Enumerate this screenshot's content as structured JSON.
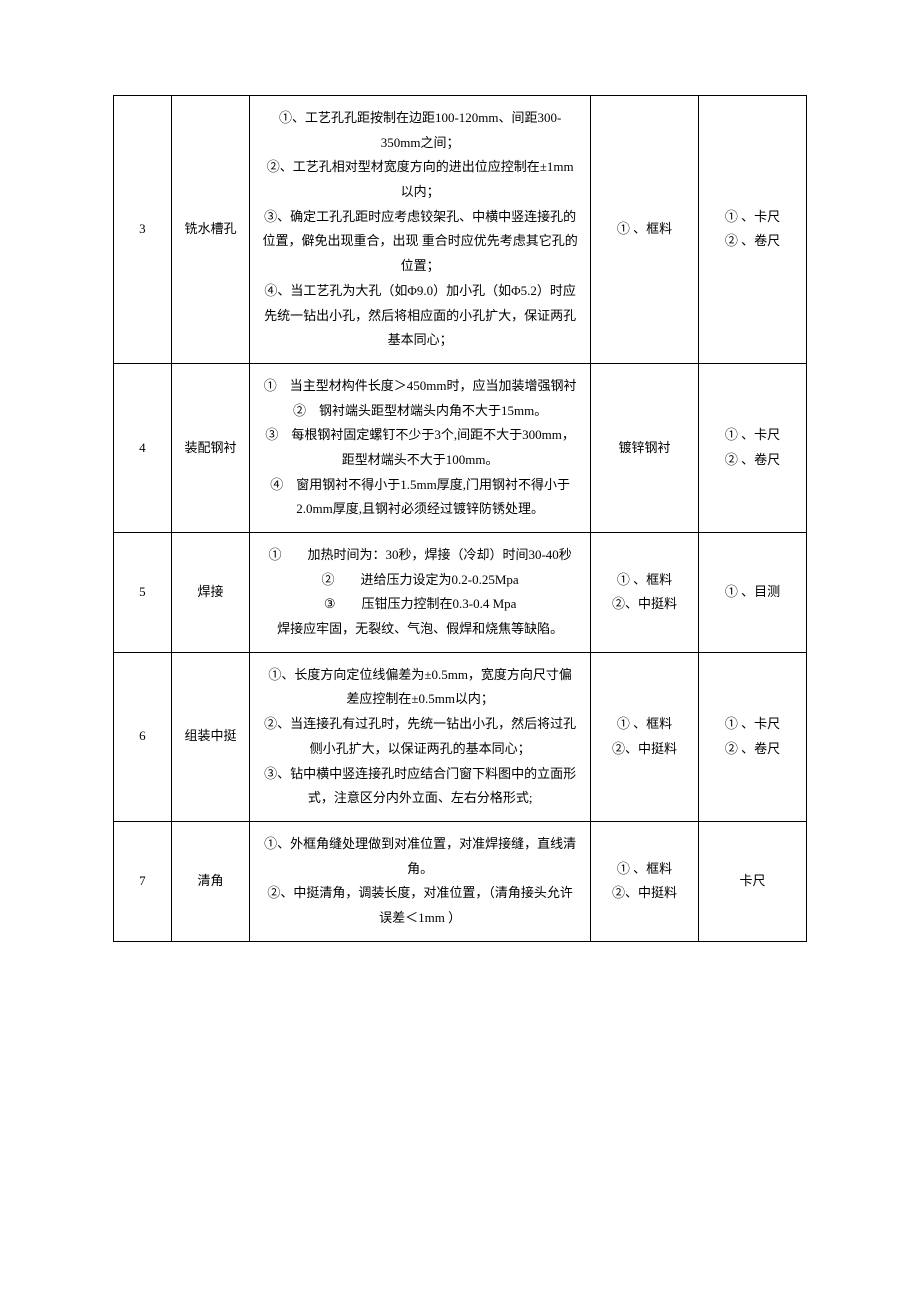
{
  "table": {
    "columns": {
      "num_width": 42,
      "name_width": 62,
      "desc_width": 300,
      "obj_width": 90,
      "tool_width": 90
    },
    "font_size": 13,
    "line_height": 1.9,
    "border_color": "#000000",
    "text_color": "#000000",
    "background_color": "#ffffff",
    "rows": [
      {
        "num": "3",
        "name": "铣水槽孔",
        "desc": "①、工艺孔孔距按制在边距100-120mm、间距300-350mm之间；\n②、工艺孔相对型材宽度方向的进出位应控制在±1mm以内；\n③、确定工孔孔距时应考虑铰架孔、中横中竖连接孔的位置，僻免出现重合，出现 重合时应优先考虑其它孔的位置；\n④、当工艺孔为大孔（如Φ9.0）加小孔（如Φ5.2）时应先统一钻出小孔，然后将相应面的小孔扩大，保证两孔基本同心；",
        "obj": "① 、框料",
        "tool": "① 、卡尺\n② 、卷尺"
      },
      {
        "num": "4",
        "name": "装配钢衬",
        "desc": "①　当主型材构件长度＞450mm时，应当加装增强钢衬\n②　钢衬端头距型材端头内角不大于15mm。\n③　每根钢衬固定螺钉不少于3个,间距不大于300mm，距型材端头不大于100mm。\n④　窗用钢衬不得小于1.5mm厚度,门用钢衬不得小于2.0mm厚度,且钢衬必须经过镀锌防锈处理。",
        "obj": "镀锌钢衬",
        "tool": "① 、卡尺\n② 、卷尺"
      },
      {
        "num": "5",
        "name": "焊接",
        "desc": "①　　加热时间为：30秒，焊接（冷却）时间30-40秒\n②　　进给压力设定为0.2-0.25Mpa\n③　　压钳压力控制在0.3-0.4 Mpa\n焊接应牢固，无裂纹、气泡、假焊和烧焦等缺陷。",
        "obj": "① 、框料\n②、中挺料",
        "tool": "① 、目测"
      },
      {
        "num": "6",
        "name": "组装中挺",
        "desc": "①、长度方向定位线偏差为±0.5mm，宽度方向尺寸偏差应控制在±0.5mm以内；\n②、当连接孔有过孔时，先统一钻出小孔，然后将过孔侧小孔扩大，以保证两孔的基本同心；\n③、钻中横中竖连接孔时应结合门窗下料图中的立面形式，注意区分内外立面、左右分格形式;",
        "obj": "① 、框料\n②、中挺料",
        "tool": "① 、卡尺\n② 、卷尺"
      },
      {
        "num": "7",
        "name": "清角",
        "desc": "①、外框角缝处理做到对准位置，对准焊接缝，直线清角。\n②、中挺清角，调装长度，对准位置，（清角接头允许误差＜1mm ）",
        "obj": "① 、框料\n②、中挺料",
        "tool": "卡尺"
      }
    ]
  }
}
